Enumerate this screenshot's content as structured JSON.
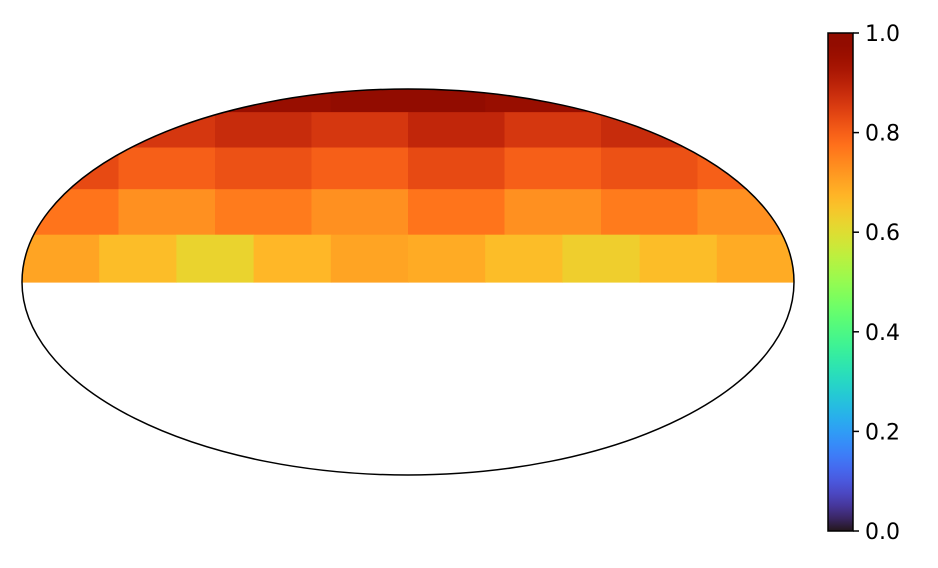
{
  "chart_data": {
    "type": "heatmap",
    "projection": "mollweide",
    "title": "",
    "xlabel": "",
    "ylabel": "",
    "grid": false,
    "colormap": "turbo",
    "clim": [
      0.0,
      1.0
    ],
    "colorbar": {
      "location": "right",
      "ticks": [
        0.0,
        0.2,
        0.4,
        0.6,
        0.8,
        1.0
      ],
      "tick_labels": [
        "0.0",
        "0.2",
        "0.4",
        "0.6",
        "0.8",
        "1.0"
      ]
    },
    "latitude_bands_deg": [
      [
        72,
        90
      ],
      [
        54,
        72
      ],
      [
        36,
        54
      ],
      [
        18,
        36
      ],
      [
        0,
        18
      ]
    ],
    "band_values": [
      [
        0.93,
        0.96,
        0.98,
        0.96,
        0.93
      ],
      [
        0.89,
        0.86,
        0.88,
        0.86,
        0.89,
        0.86,
        0.88,
        0.86
      ],
      [
        0.83,
        0.8,
        0.82,
        0.8,
        0.83,
        0.8,
        0.82,
        0.8
      ],
      [
        0.77,
        0.73,
        0.76,
        0.73,
        0.77,
        0.73,
        0.76,
        0.73
      ],
      [
        0.7,
        0.66,
        0.62,
        0.67,
        0.7,
        0.69,
        0.66,
        0.63,
        0.66,
        0.69
      ]
    ],
    "southern_hemisphere": "no data"
  }
}
